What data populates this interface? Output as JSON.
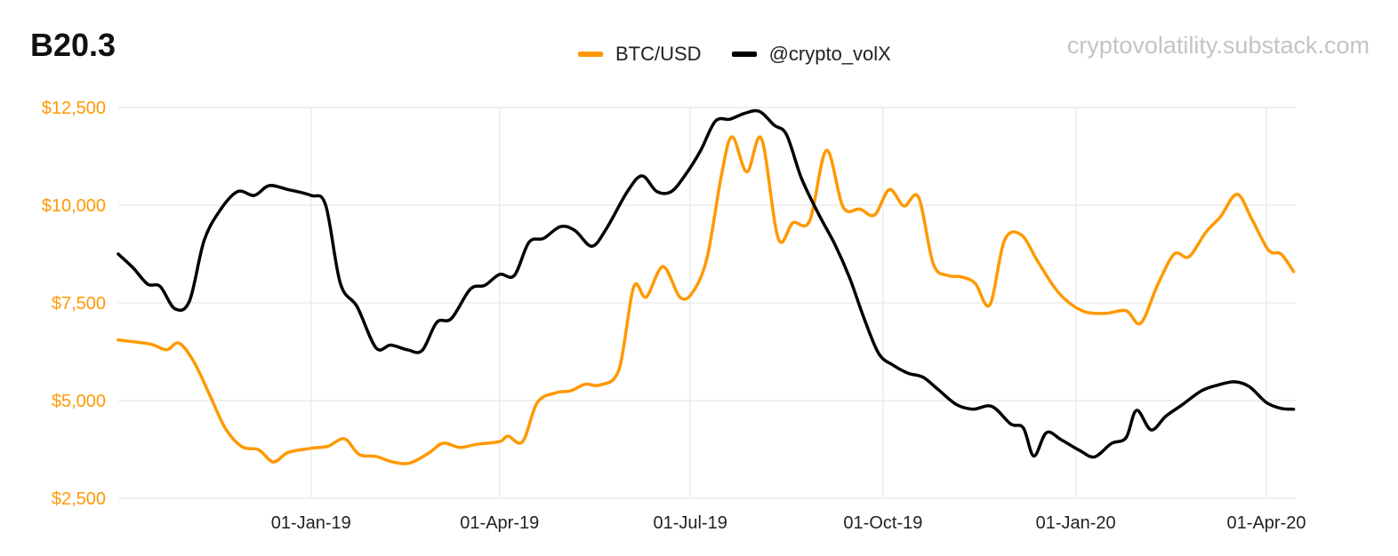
{
  "header": {
    "title": "B20.3",
    "watermark": "cryptovolatility.substack.com"
  },
  "chart_data": {
    "type": "line",
    "title": "B20.3",
    "xlabel": "",
    "ylabel": "",
    "x_range": [
      "2018-10-01",
      "2020-04-15"
    ],
    "ylim": [
      2500,
      12500
    ],
    "y_ticks": [
      {
        "value": 2500,
        "label": "$2,500"
      },
      {
        "value": 5000,
        "label": "$5,000"
      },
      {
        "value": 7500,
        "label": "$7,500"
      },
      {
        "value": 10000,
        "label": "$10,000"
      },
      {
        "value": 12500,
        "label": "$12,500"
      }
    ],
    "x_ticks": [
      {
        "date": "2019-01-01",
        "label": "01-Jan-19"
      },
      {
        "date": "2019-04-01",
        "label": "01-Apr-19"
      },
      {
        "date": "2019-07-01",
        "label": "01-Jul-19"
      },
      {
        "date": "2019-10-01",
        "label": "01-Oct-19"
      },
      {
        "date": "2020-01-01",
        "label": "01-Jan-20"
      },
      {
        "date": "2020-04-01",
        "label": "01-Apr-20"
      }
    ],
    "grid": true,
    "legend_position": "top-center",
    "series": [
      {
        "name": "BTC/USD",
        "color": "#FF9900",
        "axis": "left",
        "points": [
          [
            "2018-10-01",
            6550
          ],
          [
            "2018-10-16",
            6450
          ],
          [
            "2018-10-24",
            6300
          ],
          [
            "2018-10-30",
            6470
          ],
          [
            "2018-11-06",
            6000
          ],
          [
            "2018-11-14",
            5100
          ],
          [
            "2018-11-21",
            4300
          ],
          [
            "2018-11-29",
            3820
          ],
          [
            "2018-12-07",
            3740
          ],
          [
            "2018-12-14",
            3430
          ],
          [
            "2018-12-21",
            3670
          ],
          [
            "2019-01-01",
            3780
          ],
          [
            "2019-01-09",
            3830
          ],
          [
            "2019-01-17",
            4020
          ],
          [
            "2019-01-24",
            3620
          ],
          [
            "2019-02-01",
            3570
          ],
          [
            "2019-02-09",
            3430
          ],
          [
            "2019-02-17",
            3400
          ],
          [
            "2019-02-26",
            3650
          ],
          [
            "2019-03-05",
            3910
          ],
          [
            "2019-03-13",
            3800
          ],
          [
            "2019-03-21",
            3880
          ],
          [
            "2019-04-01",
            3950
          ],
          [
            "2019-04-05",
            4090
          ],
          [
            "2019-04-12",
            3950
          ],
          [
            "2019-04-19",
            4950
          ],
          [
            "2019-04-28",
            5200
          ],
          [
            "2019-05-05",
            5250
          ],
          [
            "2019-05-12",
            5420
          ],
          [
            "2019-05-19",
            5400
          ],
          [
            "2019-05-28",
            5800
          ],
          [
            "2019-06-04",
            7900
          ],
          [
            "2019-06-10",
            7650
          ],
          [
            "2019-06-18",
            8430
          ],
          [
            "2019-06-26",
            7650
          ],
          [
            "2019-07-02",
            7760
          ],
          [
            "2019-07-09",
            8650
          ],
          [
            "2019-07-16",
            10800
          ],
          [
            "2019-07-21",
            11750
          ],
          [
            "2019-07-28",
            10850
          ],
          [
            "2019-08-04",
            11700
          ],
          [
            "2019-08-12",
            9150
          ],
          [
            "2019-08-19",
            9550
          ],
          [
            "2019-08-27",
            9600
          ],
          [
            "2019-09-04",
            11400
          ],
          [
            "2019-09-12",
            9950
          ],
          [
            "2019-09-20",
            9900
          ],
          [
            "2019-09-27",
            9750
          ],
          [
            "2019-10-04",
            10400
          ],
          [
            "2019-10-11",
            9980
          ],
          [
            "2019-10-18",
            10200
          ],
          [
            "2019-10-25",
            8500
          ],
          [
            "2019-11-01",
            8200
          ],
          [
            "2019-11-07",
            8170
          ],
          [
            "2019-11-14",
            8000
          ],
          [
            "2019-11-21",
            7450
          ],
          [
            "2019-11-28",
            9100
          ],
          [
            "2019-12-06",
            9240
          ],
          [
            "2019-12-14",
            8550
          ],
          [
            "2019-12-24",
            7750
          ],
          [
            "2020-01-04",
            7300
          ],
          [
            "2020-01-15",
            7230
          ],
          [
            "2020-01-25",
            7300
          ],
          [
            "2020-02-01",
            6980
          ],
          [
            "2020-02-09",
            7950
          ],
          [
            "2020-02-17",
            8750
          ],
          [
            "2020-02-24",
            8680
          ],
          [
            "2020-03-03",
            9300
          ],
          [
            "2020-03-10",
            9700
          ],
          [
            "2020-03-18",
            10280
          ],
          [
            "2020-03-25",
            9650
          ],
          [
            "2020-04-02",
            8850
          ],
          [
            "2020-04-08",
            8750
          ],
          [
            "2020-04-14",
            8300
          ]
        ]
      },
      {
        "name": "@crypto_volX",
        "color": "#000000",
        "axis": "left",
        "points": [
          [
            "2018-10-01",
            8750
          ],
          [
            "2018-10-08",
            8400
          ],
          [
            "2018-10-15",
            7980
          ],
          [
            "2018-10-21",
            7920
          ],
          [
            "2018-10-28",
            7350
          ],
          [
            "2018-11-04",
            7550
          ],
          [
            "2018-11-11",
            9100
          ],
          [
            "2018-11-19",
            9900
          ],
          [
            "2018-11-27",
            10350
          ],
          [
            "2018-12-05",
            10250
          ],
          [
            "2018-12-12",
            10500
          ],
          [
            "2018-12-21",
            10400
          ],
          [
            "2019-01-01",
            10250
          ],
          [
            "2019-01-08",
            10000
          ],
          [
            "2019-01-15",
            8000
          ],
          [
            "2019-01-23",
            7400
          ],
          [
            "2019-02-01",
            6350
          ],
          [
            "2019-02-08",
            6420
          ],
          [
            "2019-02-16",
            6300
          ],
          [
            "2019-02-23",
            6280
          ],
          [
            "2019-03-02",
            7000
          ],
          [
            "2019-03-09",
            7100
          ],
          [
            "2019-03-18",
            7850
          ],
          [
            "2019-03-25",
            7950
          ],
          [
            "2019-04-01",
            8230
          ],
          [
            "2019-04-08",
            8200
          ],
          [
            "2019-04-15",
            9050
          ],
          [
            "2019-04-22",
            9150
          ],
          [
            "2019-04-30",
            9450
          ],
          [
            "2019-05-07",
            9350
          ],
          [
            "2019-05-15",
            8950
          ],
          [
            "2019-05-22",
            9400
          ],
          [
            "2019-06-01",
            10350
          ],
          [
            "2019-06-08",
            10750
          ],
          [
            "2019-06-15",
            10350
          ],
          [
            "2019-06-22",
            10350
          ],
          [
            "2019-06-29",
            10800
          ],
          [
            "2019-07-06",
            11400
          ],
          [
            "2019-07-13",
            12150
          ],
          [
            "2019-07-20",
            12200
          ],
          [
            "2019-07-27",
            12350
          ],
          [
            "2019-08-03",
            12400
          ],
          [
            "2019-08-10",
            12050
          ],
          [
            "2019-08-16",
            11800
          ],
          [
            "2019-08-23",
            10700
          ],
          [
            "2019-08-31",
            9800
          ],
          [
            "2019-09-08",
            9000
          ],
          [
            "2019-09-15",
            8150
          ],
          [
            "2019-09-22",
            7100
          ],
          [
            "2019-09-29",
            6200
          ],
          [
            "2019-10-06",
            5900
          ],
          [
            "2019-10-13",
            5700
          ],
          [
            "2019-10-20",
            5600
          ],
          [
            "2019-10-27",
            5300
          ],
          [
            "2019-11-05",
            4900
          ],
          [
            "2019-11-13",
            4780
          ],
          [
            "2019-11-22",
            4850
          ],
          [
            "2019-12-01",
            4400
          ],
          [
            "2019-12-07",
            4300
          ],
          [
            "2019-12-12",
            3580
          ],
          [
            "2019-12-18",
            4180
          ],
          [
            "2019-12-25",
            4000
          ],
          [
            "2020-01-03",
            3720
          ],
          [
            "2020-01-10",
            3560
          ],
          [
            "2020-01-18",
            3900
          ],
          [
            "2020-01-25",
            4050
          ],
          [
            "2020-01-30",
            4750
          ],
          [
            "2020-02-06",
            4250
          ],
          [
            "2020-02-13",
            4600
          ],
          [
            "2020-02-21",
            4900
          ],
          [
            "2020-03-01",
            5250
          ],
          [
            "2020-03-09",
            5400
          ],
          [
            "2020-03-17",
            5480
          ],
          [
            "2020-03-24",
            5350
          ],
          [
            "2020-04-01",
            4950
          ],
          [
            "2020-04-08",
            4800
          ],
          [
            "2020-04-14",
            4780
          ]
        ]
      }
    ]
  }
}
